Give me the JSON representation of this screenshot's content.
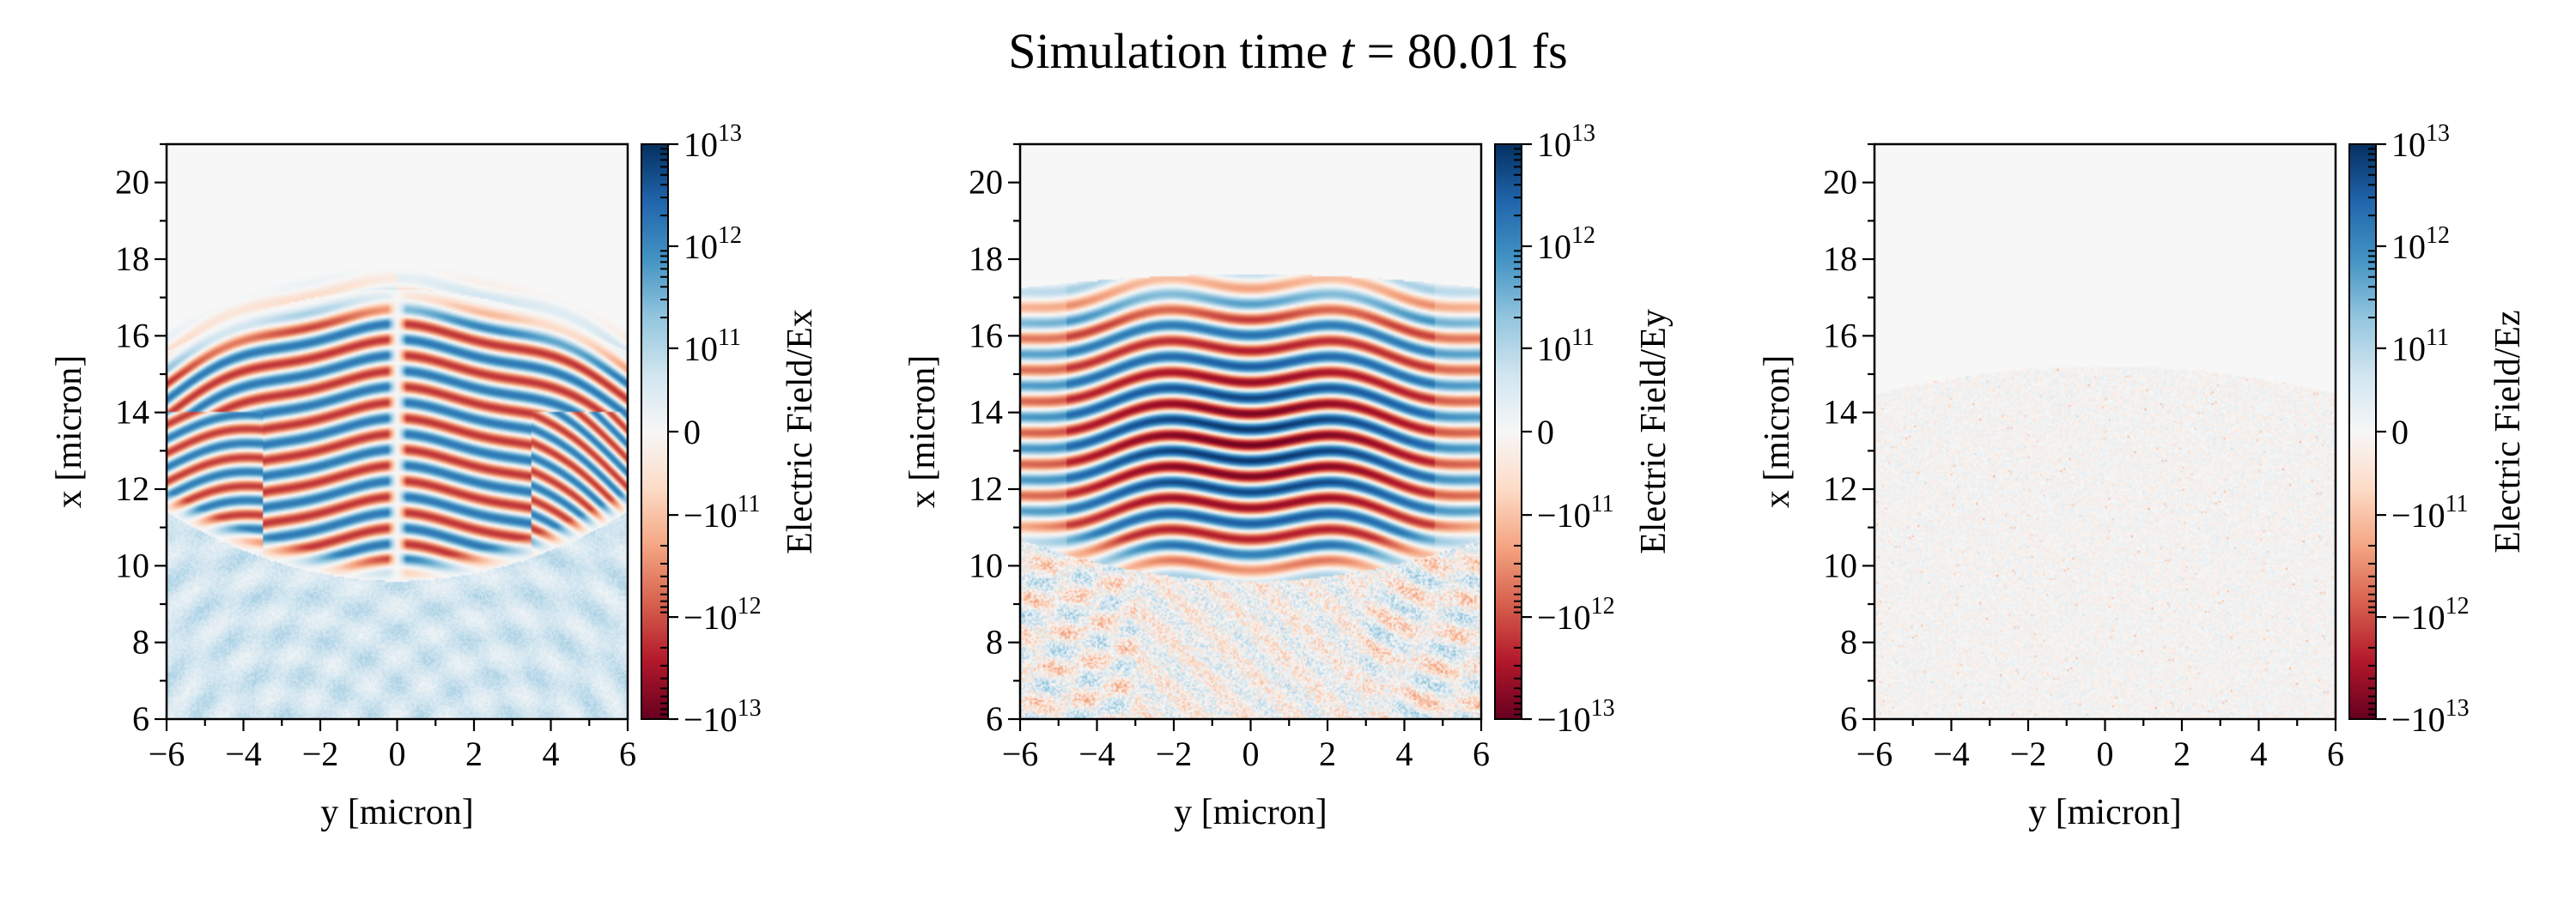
{
  "title": {
    "prefix": "Simulation time ",
    "var": "t",
    "eq": " = ",
    "value": "80.01 fs"
  },
  "chart_data": [
    {
      "type": "heatmap",
      "field": "Ex",
      "xlabel": "y [micron]",
      "ylabel": "x [micron]",
      "colorbar_label": "Electric Field/Ex",
      "xlim": [
        -6,
        6
      ],
      "ylim": [
        6,
        21
      ],
      "xticks": [
        "−6",
        "−4",
        "−2",
        "0",
        "2",
        "4",
        "6"
      ],
      "yticks": [
        "6",
        "8",
        "10",
        "12",
        "14",
        "16",
        "18",
        "20"
      ],
      "color_scale": "symlog",
      "color_range": [
        -10000000000000.0,
        10000000000000.0
      ],
      "colormap": "RdBu",
      "pattern": "curved laser wavefronts between x≈9.5 and x≈17.5 micron, sign antisymmetric about y=0"
    },
    {
      "type": "heatmap",
      "field": "Ey",
      "xlabel": "y [micron]",
      "ylabel": "x [micron]",
      "colorbar_label": "Electric Field/Ey",
      "xlim": [
        -6,
        6
      ],
      "ylim": [
        6,
        21
      ],
      "xticks": [
        "−6",
        "−4",
        "−2",
        "0",
        "2",
        "4",
        "6"
      ],
      "yticks": [
        "6",
        "8",
        "10",
        "12",
        "14",
        "16",
        "18",
        "20"
      ],
      "color_scale": "symlog",
      "color_range": [
        -10000000000000.0,
        10000000000000.0
      ],
      "colormap": "RdBu",
      "pattern": "strong laser wavefronts between x≈9.5 and x≈17.7 micron"
    },
    {
      "type": "heatmap",
      "field": "Ez",
      "xlabel": "y [micron]",
      "ylabel": "x [micron]",
      "colorbar_label": "Electric Field/Ez",
      "xlim": [
        -6,
        6
      ],
      "ylim": [
        6,
        21
      ],
      "xticks": [
        "−6",
        "−4",
        "−2",
        "0",
        "2",
        "4",
        "6"
      ],
      "yticks": [
        "6",
        "8",
        "10",
        "12",
        "14",
        "16",
        "18",
        "20"
      ],
      "color_scale": "symlog",
      "color_range": [
        -10000000000000.0,
        10000000000000.0
      ],
      "colormap": "RdBu",
      "pattern": "near-zero noise below x≈15 micron"
    }
  ],
  "colorbar_ticks": [
    {
      "sign": "",
      "base": "10",
      "exp": "13",
      "value": 10000000000000.0
    },
    {
      "sign": "",
      "base": "10",
      "exp": "12",
      "value": 1000000000000.0
    },
    {
      "sign": "",
      "base": "10",
      "exp": "11",
      "value": 100000000000.0
    },
    {
      "sign": "",
      "base": "0",
      "exp": "",
      "value": 0
    },
    {
      "sign": "−",
      "base": "10",
      "exp": "11",
      "value": -100000000000.0
    },
    {
      "sign": "−",
      "base": "10",
      "exp": "12",
      "value": -1000000000000.0
    },
    {
      "sign": "−",
      "base": "10",
      "exp": "13",
      "value": -10000000000000.0
    }
  ],
  "colormap_stops": [
    "#67001f",
    "#b2182b",
    "#d6604d",
    "#f4a582",
    "#fddbc7",
    "#f7f7f7",
    "#d1e5f0",
    "#92c5de",
    "#4393c3",
    "#2166ac",
    "#053061"
  ]
}
